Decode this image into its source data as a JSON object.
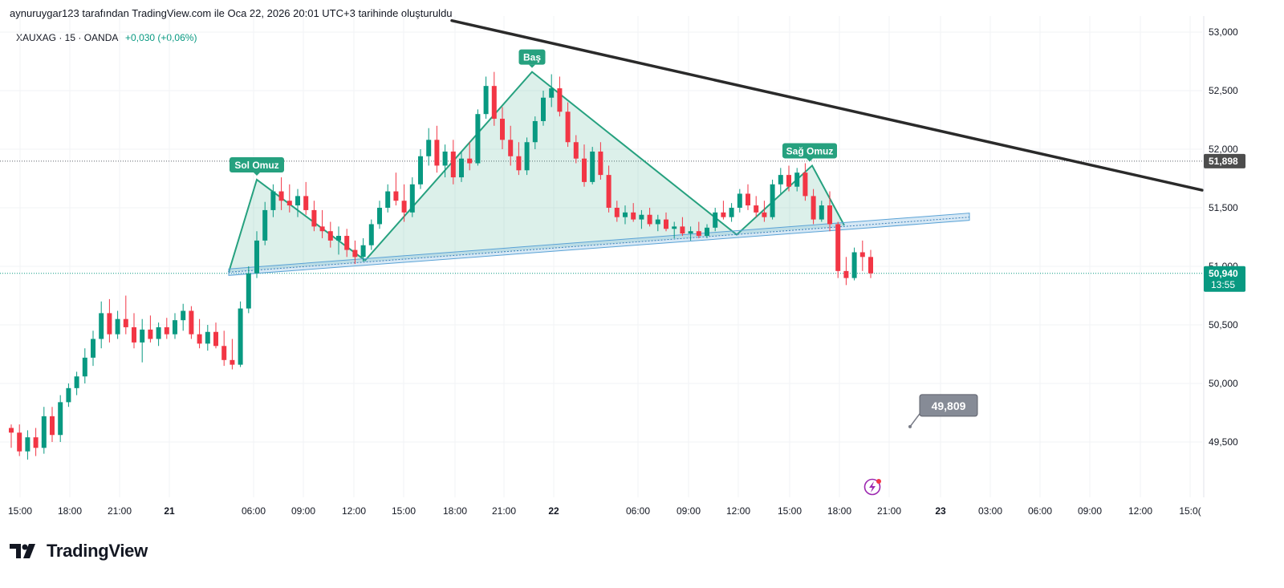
{
  "header": {
    "note": "aynuruygar123 tarafından TradingView.com ile Oca 22, 2026 20:01 UTC+3 tarihinde oluşturuldu"
  },
  "symbol": {
    "label": "XAUXAG · 15 · OANDA",
    "change": "+0,030 (+0,06%)"
  },
  "brand": {
    "name": "TradingView",
    "icon": "tradingview-logo-icon"
  },
  "flash_icon": "lightning-bolt-icon",
  "colors": {
    "up": "#089981",
    "down": "#f23645",
    "pattern": "#26a17f",
    "trendline": "#2a2a2a",
    "neckline": "#5ba3d6",
    "flash": "#9c27b0",
    "target_badge": "#868b96"
  },
  "chart_data": {
    "type": "candlestick",
    "interval": "15",
    "yticks": [
      "53,000",
      "52,500",
      "52,000",
      "51,500",
      "51,000",
      "50,500",
      "50,000",
      "49,500"
    ],
    "ylim": [
      49000,
      53050
    ],
    "xticks": [
      "15:00",
      "18:00",
      "21:00",
      "21",
      "06:00",
      "09:00",
      "12:00",
      "15:00",
      "18:00",
      "21:00",
      "22",
      "06:00",
      "09:00",
      "12:00",
      "15:00",
      "18:00",
      "21:00",
      "23",
      "03:00",
      "06:00",
      "09:00",
      "12:00",
      "15:0("
    ],
    "price_markers": [
      {
        "value": 51898,
        "label": "51,898"
      },
      {
        "value": 50940,
        "label": "50,940",
        "countdown": "13:55"
      }
    ],
    "target": {
      "value": 49809,
      "label": "49,809"
    },
    "pattern_labels": [
      {
        "text": "Sol Omuz",
        "value": 51740
      },
      {
        "text": "Baş",
        "value": 52660
      },
      {
        "text": "Sağ Omuz",
        "value": 51860
      }
    ],
    "pattern_points": [
      50950,
      51740,
      51050,
      52660,
      51270,
      51860,
      51350
    ],
    "neckline": [
      50950,
      51420
    ],
    "trendline": [
      53050,
      51650
    ],
    "candles_ohlc": [
      [
        49620,
        49650,
        49450,
        49580
      ],
      [
        49580,
        49650,
        49380,
        49420
      ],
      [
        49420,
        49600,
        49350,
        49540
      ],
      [
        49540,
        49620,
        49380,
        49450
      ],
      [
        49450,
        49800,
        49400,
        49720
      ],
      [
        49720,
        49800,
        49500,
        49560
      ],
      [
        49560,
        49900,
        49500,
        49840
      ],
      [
        49840,
        50000,
        49800,
        49960
      ],
      [
        49960,
        50100,
        49900,
        50060
      ],
      [
        50060,
        50300,
        50000,
        50220
      ],
      [
        50220,
        50450,
        50150,
        50380
      ],
      [
        50380,
        50700,
        50300,
        50600
      ],
      [
        50600,
        50720,
        50350,
        50420
      ],
      [
        50420,
        50620,
        50380,
        50550
      ],
      [
        50550,
        50750,
        50420,
        50480
      ],
      [
        50480,
        50600,
        50300,
        50350
      ],
      [
        50350,
        50550,
        50180,
        50460
      ],
      [
        50460,
        50580,
        50350,
        50380
      ],
      [
        50380,
        50520,
        50320,
        50480
      ],
      [
        50480,
        50560,
        50380,
        50420
      ],
      [
        50420,
        50600,
        50380,
        50540
      ],
      [
        50540,
        50680,
        50450,
        50620
      ],
      [
        50620,
        50660,
        50380,
        50420
      ],
      [
        50420,
        50550,
        50300,
        50340
      ],
      [
        50340,
        50500,
        50280,
        50440
      ],
      [
        50440,
        50520,
        50300,
        50320
      ],
      [
        50320,
        50450,
        50150,
        50200
      ],
      [
        50200,
        50380,
        50120,
        50160
      ],
      [
        50160,
        50700,
        50140,
        50640
      ],
      [
        50640,
        51000,
        50600,
        50940
      ],
      [
        50940,
        51300,
        50900,
        51220
      ],
      [
        51220,
        51550,
        51180,
        51480
      ],
      [
        51480,
        51700,
        51420,
        51640
      ],
      [
        51640,
        51760,
        51480,
        51560
      ],
      [
        51560,
        51700,
        51460,
        51520
      ],
      [
        51520,
        51660,
        51420,
        51600
      ],
      [
        51600,
        51720,
        51440,
        51480
      ],
      [
        51480,
        51560,
        51300,
        51340
      ],
      [
        51340,
        51480,
        51240,
        51300
      ],
      [
        51300,
        51380,
        51160,
        51220
      ],
      [
        51220,
        51340,
        51100,
        51260
      ],
      [
        51260,
        51320,
        51080,
        51140
      ],
      [
        51140,
        51220,
        51020,
        51080
      ],
      [
        51080,
        51240,
        51040,
        51180
      ],
      [
        51180,
        51400,
        51140,
        51360
      ],
      [
        51360,
        51560,
        51320,
        51500
      ],
      [
        51500,
        51700,
        51460,
        51640
      ],
      [
        51640,
        51800,
        51520,
        51560
      ],
      [
        51560,
        51700,
        51380,
        51460
      ],
      [
        51460,
        51760,
        51420,
        51700
      ],
      [
        51700,
        52000,
        51660,
        51940
      ],
      [
        51940,
        52180,
        51860,
        52080
      ],
      [
        52080,
        52200,
        51800,
        51860
      ],
      [
        51860,
        52040,
        51760,
        51980
      ],
      [
        51980,
        52080,
        51700,
        51760
      ],
      [
        51760,
        51980,
        51720,
        51920
      ],
      [
        51920,
        52060,
        51820,
        51880
      ],
      [
        51880,
        52340,
        51860,
        52300
      ],
      [
        52300,
        52620,
        52260,
        52540
      ],
      [
        52540,
        52660,
        52200,
        52260
      ],
      [
        52260,
        52360,
        52000,
        52080
      ],
      [
        52080,
        52200,
        51860,
        51940
      ],
      [
        51940,
        52060,
        51780,
        51820
      ],
      [
        51820,
        52100,
        51780,
        52060
      ],
      [
        52060,
        52280,
        52000,
        52240
      ],
      [
        52240,
        52500,
        52200,
        52440
      ],
      [
        52440,
        52640,
        52360,
        52520
      ],
      [
        52520,
        52620,
        52280,
        52320
      ],
      [
        52320,
        52400,
        52020,
        52060
      ],
      [
        52060,
        52120,
        51880,
        51920
      ],
      [
        51920,
        52040,
        51680,
        51720
      ],
      [
        51720,
        52020,
        51700,
        51980
      ],
      [
        51980,
        52060,
        51740,
        51780
      ],
      [
        51780,
        51860,
        51460,
        51500
      ],
      [
        51500,
        51560,
        51380,
        51420
      ],
      [
        51420,
        51520,
        51360,
        51460
      ],
      [
        51460,
        51540,
        51380,
        51400
      ],
      [
        51400,
        51480,
        51320,
        51440
      ],
      [
        51440,
        51500,
        51340,
        51360
      ],
      [
        51360,
        51440,
        51300,
        51400
      ],
      [
        51400,
        51460,
        51300,
        51320
      ],
      [
        51320,
        51380,
        51240,
        51340
      ],
      [
        51340,
        51420,
        51260,
        51280
      ],
      [
        51280,
        51340,
        51220,
        51300
      ],
      [
        51300,
        51380,
        51240,
        51260
      ],
      [
        51260,
        51360,
        51240,
        51330
      ],
      [
        51330,
        51500,
        51300,
        51460
      ],
      [
        51460,
        51560,
        51400,
        51420
      ],
      [
        51420,
        51540,
        51380,
        51500
      ],
      [
        51500,
        51660,
        51460,
        51620
      ],
      [
        51620,
        51700,
        51480,
        51520
      ],
      [
        51520,
        51600,
        51420,
        51460
      ],
      [
        51460,
        51560,
        51380,
        51420
      ],
      [
        51420,
        51740,
        51400,
        51700
      ],
      [
        51700,
        51840,
        51620,
        51780
      ],
      [
        51780,
        51860,
        51640,
        51680
      ],
      [
        51680,
        51840,
        51640,
        51800
      ],
      [
        51800,
        51880,
        51560,
        51600
      ],
      [
        51600,
        51660,
        51360,
        51400
      ],
      [
        51400,
        51560,
        51380,
        51520
      ],
      [
        51520,
        51640,
        51300,
        51360
      ],
      [
        51360,
        51380,
        50900,
        50960
      ],
      [
        50960,
        51080,
        50840,
        50900
      ],
      [
        50900,
        51160,
        50880,
        51120
      ],
      [
        51120,
        51220,
        50960,
        51080
      ],
      [
        51080,
        51140,
        50900,
        50940
      ]
    ]
  }
}
